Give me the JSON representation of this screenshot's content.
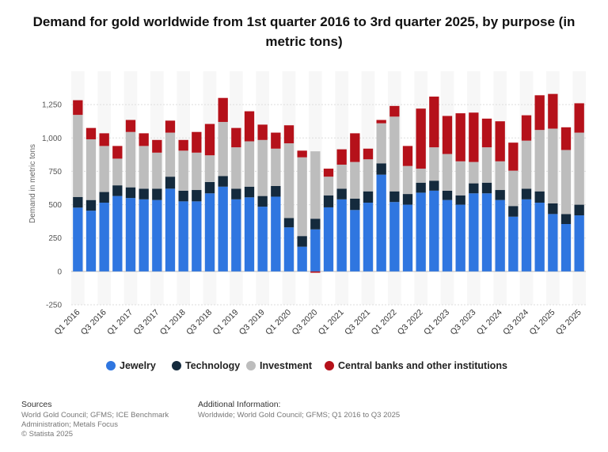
{
  "chart_data": {
    "type": "bar",
    "stacked": true,
    "title": "Demand for gold worldwide from 1st quarter 2016 to 3rd quarter 2025, by purpose (in metric tons)",
    "ylabel": "Demand in metric tons",
    "xlabel": "",
    "ylim": [
      -250,
      1500
    ],
    "yticks": [
      -250,
      0,
      250,
      500,
      750,
      1000,
      1250
    ],
    "ytick_labels": [
      "-250",
      "0",
      "250",
      "500",
      "750",
      "1,000",
      "1,250"
    ],
    "grid": "horizontal dotted",
    "legend_position": "bottom",
    "categories": [
      "Q1 2016",
      "Q2 2016",
      "Q3 2016",
      "Q4 2016",
      "Q1 2017",
      "Q2 2017",
      "Q3 2017",
      "Q4 2017",
      "Q1 2018",
      "Q2 2018",
      "Q3 2018",
      "Q4 2018",
      "Q1 2019",
      "Q2 2019",
      "Q3 2019",
      "Q4 2019",
      "Q1 2020",
      "Q2 2020",
      "Q3 2020",
      "Q4 2020",
      "Q1 2021",
      "Q2 2021",
      "Q3 2021",
      "Q4 2021",
      "Q1 2022",
      "Q2 2022",
      "Q3 2022",
      "Q4 2022",
      "Q1 2023",
      "Q2 2023",
      "Q3 2023",
      "Q4 2023",
      "Q1 2024",
      "Q2 2024",
      "Q3 2024",
      "Q4 2024",
      "Q1 2025",
      "Q2 2025",
      "Q3 2025"
    ],
    "x_tick_labels": [
      "Q1 2016",
      "Q3 2016",
      "Q1 2017",
      "Q3 2017",
      "Q1 2018",
      "Q3 2018",
      "Q1 2019",
      "Q3 2019",
      "Q1 2020",
      "Q3 2020",
      "Q1 2021",
      "Q3 2021",
      "Q1 2022",
      "Q3 2022",
      "Q1 2023",
      "Q3 2023",
      "Q1 2024",
      "Q3 2024",
      "Q1 2025",
      "Q3 2025"
    ],
    "series": [
      {
        "name": "Jewelry",
        "color": "#2f76e0",
        "values": [
          478,
          455,
          515,
          565,
          550,
          540,
          535,
          620,
          525,
          525,
          585,
          635,
          540,
          555,
          485,
          560,
          330,
          185,
          315,
          480,
          540,
          460,
          515,
          725,
          520,
          500,
          590,
          605,
          535,
          500,
          585,
          585,
          535,
          410,
          540,
          515,
          430,
          355,
          420
        ]
      },
      {
        "name": "Technology",
        "color": "#142a3d",
        "values": [
          80,
          80,
          80,
          80,
          80,
          80,
          85,
          90,
          80,
          85,
          85,
          80,
          80,
          80,
          80,
          80,
          70,
          80,
          80,
          90,
          80,
          85,
          85,
          85,
          80,
          80,
          75,
          75,
          70,
          70,
          75,
          80,
          75,
          80,
          80,
          85,
          80,
          75,
          80
        ]
      },
      {
        "name": "Investment",
        "color": "#bdbdbd",
        "values": [
          615,
          455,
          345,
          200,
          415,
          320,
          270,
          330,
          300,
          280,
          200,
          405,
          310,
          340,
          420,
          280,
          560,
          590,
          505,
          140,
          180,
          275,
          240,
          300,
          560,
          210,
          105,
          250,
          275,
          255,
          160,
          265,
          215,
          265,
          360,
          460,
          560,
          480,
          540
        ]
      },
      {
        "name": "Central banks and other institutions",
        "color": "#b5111a",
        "values": [
          110,
          85,
          95,
          95,
          90,
          95,
          95,
          90,
          80,
          155,
          235,
          180,
          145,
          225,
          115,
          120,
          135,
          50,
          -10,
          60,
          115,
          215,
          80,
          25,
          80,
          150,
          450,
          380,
          285,
          360,
          370,
          215,
          300,
          210,
          190,
          260,
          260,
          170,
          220
        ]
      }
    ]
  },
  "footer": {
    "sources_heading": "Sources",
    "sources_text": "World Gold Council; GFMS; ICE Benchmark Administration; Metals Focus",
    "copyright": "© Statista 2025",
    "additional_heading": "Additional Information:",
    "additional_text": "Worldwide; World Gold Council; GFMS; Q1 2016 to Q3 2025"
  }
}
